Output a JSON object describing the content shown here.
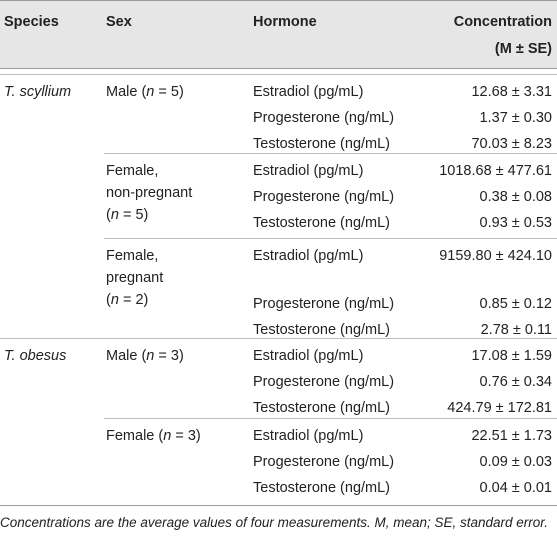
{
  "header": {
    "species": "Species",
    "sex": "Sex",
    "hormone": "Hormone",
    "concentration": "Concentration",
    "concentration_sub": "(M ± SE)"
  },
  "species": {
    "t_scyllium": "T. scyllium",
    "t_obesus": "T. obesus"
  },
  "sex": {
    "male_prefix": "Male (",
    "female_prefix": "Female (",
    "n": "n",
    "eq5": " = 5)",
    "eq3": " = 3)",
    "eq2": " = 2)",
    "female": "Female,",
    "non_pregnant": "non-pregnant",
    "pregnant": "pregnant",
    "open": "("
  },
  "rows": [
    {
      "hormone": "Estradiol (pg/mL)",
      "value": "12.68 ± 3.31"
    },
    {
      "hormone": "Progesterone (ng/mL)",
      "value": "1.37 ± 0.30"
    },
    {
      "hormone": "Testosterone (ng/mL)",
      "value": "70.03 ± 8.23"
    },
    {
      "hormone": "Estradiol (pg/mL)",
      "value": "1018.68 ± 477.61"
    },
    {
      "hormone": "Progesterone (ng/mL)",
      "value": "0.38 ± 0.08"
    },
    {
      "hormone": "Testosterone (ng/mL)",
      "value": "0.93 ± 0.53"
    },
    {
      "hormone": "Estradiol (pg/mL)",
      "value": "9159.80 ± 424.10"
    },
    {
      "hormone": "Progesterone (ng/mL)",
      "value": "0.85 ± 0.12"
    },
    {
      "hormone": "Testosterone (ng/mL)",
      "value": "2.78 ± 0.11"
    },
    {
      "hormone": "Estradiol (pg/mL)",
      "value": "17.08 ± 1.59"
    },
    {
      "hormone": "Progesterone (ng/mL)",
      "value": "0.76 ± 0.34"
    },
    {
      "hormone": "Testosterone (ng/mL)",
      "value": "424.79 ± 172.81"
    },
    {
      "hormone": "Estradiol (pg/mL)",
      "value": "22.51 ± 1.73"
    },
    {
      "hormone": "Progesterone (ng/mL)",
      "value": "0.09 ± 0.03"
    },
    {
      "hormone": "Testosterone (ng/mL)",
      "value": "0.04 ± 0.01"
    }
  ],
  "footnote": "Concentrations are the average values of four measurements. M, mean; SE, standard error."
}
